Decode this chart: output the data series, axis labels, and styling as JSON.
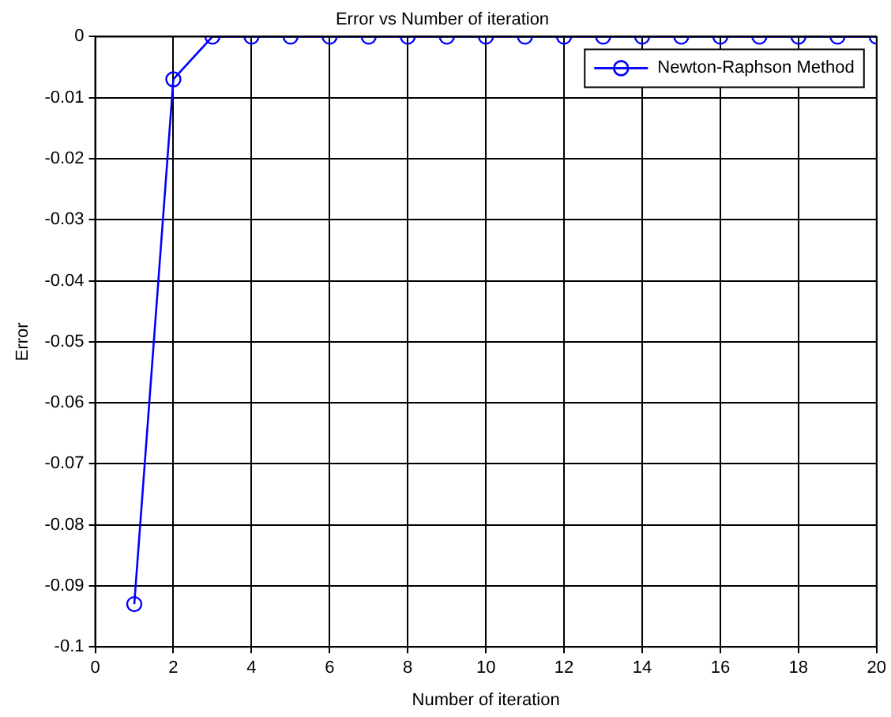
{
  "chart_data": {
    "type": "line",
    "title": "Error vs Number of iteration",
    "xlabel": "Number of iteration",
    "ylabel": "Error",
    "x": [
      1,
      2,
      3,
      4,
      5,
      6,
      7,
      8,
      9,
      10,
      11,
      12,
      13,
      14,
      15,
      16,
      17,
      18,
      19,
      20
    ],
    "series": [
      {
        "name": "Newton-Raphson Method",
        "color": "#0000ff",
        "values": [
          -0.093,
          -0.007,
          0,
          0,
          0,
          0,
          0,
          0,
          0,
          0,
          0,
          0,
          0,
          0,
          0,
          0,
          0,
          0,
          0,
          0
        ]
      }
    ],
    "xlim": [
      0,
      20
    ],
    "xticks": [
      0,
      2,
      4,
      6,
      8,
      10,
      12,
      14,
      16,
      18,
      20
    ],
    "ylim": [
      -0.1,
      0
    ],
    "yticks": [
      -0.1,
      -0.09,
      -0.08,
      -0.07,
      -0.06,
      -0.05,
      -0.04,
      -0.03,
      -0.02,
      -0.01,
      0
    ],
    "grid": true,
    "legend": "top right",
    "marker": "circle",
    "line_style": "solid"
  }
}
